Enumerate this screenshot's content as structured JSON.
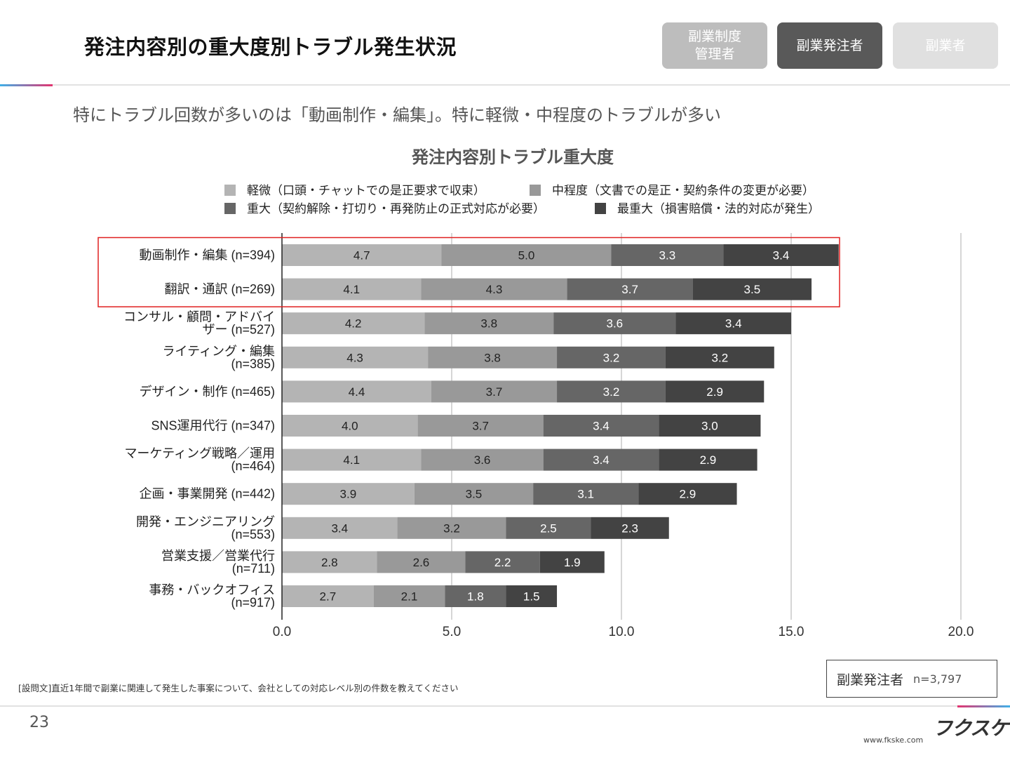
{
  "header": {
    "title": "発注内容別の重大度別トラブル発生状況",
    "tabs": [
      {
        "label": "副業制度\n管理者"
      },
      {
        "label": "副業発注者"
      },
      {
        "label": "副業者"
      }
    ]
  },
  "subtitle": "特にトラブル回数が多いのは「動画制作・編集」。特に軽微・中程度のトラブルが多い",
  "chart_data": {
    "type": "bar",
    "orientation": "horizontal",
    "stacked": true,
    "title": "発注内容別トラブル重大度",
    "categories": [
      [
        "動画制作・編集 (n=394)"
      ],
      [
        "翻訳・通訳 (n=269)"
      ],
      [
        "コンサル・顧問・アドバイ",
        "ザー (n=527)"
      ],
      [
        "ライティング・編集",
        "(n=385)"
      ],
      [
        "デザイン・制作 (n=465)"
      ],
      [
        "SNS運用代行 (n=347)"
      ],
      [
        "マーケティング戦略／運用",
        "(n=464)"
      ],
      [
        "企画・事業開発 (n=442)"
      ],
      [
        "開発・エンジニアリング",
        "(n=553)"
      ],
      [
        "営業支援／営業代行",
        "(n=711)"
      ],
      [
        "事務・バックオフィス",
        "(n=917)"
      ]
    ],
    "series": [
      {
        "name": "軽微（口頭・チャットでの是正要求で収束）",
        "color": "#b4b4b4",
        "label_color": "#222222",
        "values": [
          4.7,
          4.1,
          4.2,
          4.3,
          4.4,
          4.0,
          4.1,
          3.9,
          3.4,
          2.8,
          2.7
        ]
      },
      {
        "name": "中程度（文書での是正・契約条件の変更が必要）",
        "color": "#999999",
        "label_color": "#222222",
        "values": [
          5.0,
          4.3,
          3.8,
          3.8,
          3.7,
          3.7,
          3.6,
          3.5,
          3.2,
          2.6,
          2.1
        ]
      },
      {
        "name": "重大（契約解除・打切り・再発防止の正式対応が必要）",
        "color": "#666666",
        "label_color": "#ffffff",
        "values": [
          3.3,
          3.7,
          3.6,
          3.2,
          3.2,
          3.4,
          3.4,
          3.1,
          2.5,
          2.2,
          1.8
        ]
      },
      {
        "name": "最重大（損害賠償・法的対応が発生）",
        "color": "#434343",
        "label_color": "#ffffff",
        "values": [
          3.4,
          3.5,
          3.4,
          3.2,
          2.9,
          3.0,
          2.9,
          2.9,
          2.3,
          1.9,
          1.5
        ]
      }
    ],
    "xlim": [
      0,
      20
    ],
    "xticks": [
      "0.0",
      "5.0",
      "10.0",
      "15.0",
      "20.0"
    ],
    "highlight_rows": [
      0,
      1
    ],
    "highlight_color": "#e02020"
  },
  "footnote": "[設問文]直近1年間で副業に関連して発生した事案について、会社としての対応レベル別の件数を教えてください",
  "sample": {
    "label": "副業発注者",
    "n": "n=3,797"
  },
  "page_number": "23",
  "brand": {
    "logo": "フクスケ",
    "site": "www.fkske.com"
  }
}
